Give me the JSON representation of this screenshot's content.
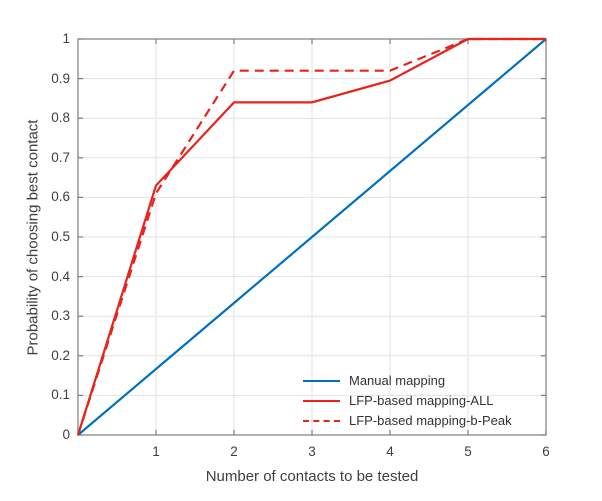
{
  "figure": {
    "background": "#ffffff"
  },
  "colors": {
    "grid": "#e2e2e2",
    "axis": "#7d7d7d",
    "text": "#3f3f3f",
    "blue": "#0072BD",
    "red": "#e8231c"
  },
  "chart_data": {
    "type": "line",
    "title": "",
    "xlabel": "Number of contacts to be tested",
    "ylabel": "Probability of choosing best contact",
    "xlim": [
      0,
      6
    ],
    "ylim": [
      0,
      1
    ],
    "xticks": [
      1,
      2,
      3,
      4,
      5,
      6
    ],
    "yticks": [
      0,
      0.1,
      0.2,
      0.3,
      0.4,
      0.5,
      0.6,
      0.7,
      0.8,
      0.9,
      1
    ],
    "grid": true,
    "legend_position": "inside-bottom-right",
    "legend_box": false,
    "x": [
      0,
      1,
      2,
      3,
      4,
      5,
      6
    ],
    "series": [
      {
        "name": "Manual mapping",
        "color": "#0072BD",
        "style": "solid",
        "values": [
          0,
          0.1667,
          0.3333,
          0.5,
          0.6667,
          0.8333,
          1.0
        ]
      },
      {
        "name": "LFP-based mapping-ALL",
        "color": "#e8231c",
        "style": "solid",
        "values": [
          0,
          0.63,
          0.84,
          0.84,
          0.895,
          1.0,
          1.0
        ]
      },
      {
        "name": "LFP-based mapping-b-Peak",
        "color": "#e8231c",
        "style": "dashed",
        "values": [
          0,
          0.61,
          0.92,
          0.92,
          0.92,
          1.0,
          1.0
        ]
      }
    ]
  }
}
